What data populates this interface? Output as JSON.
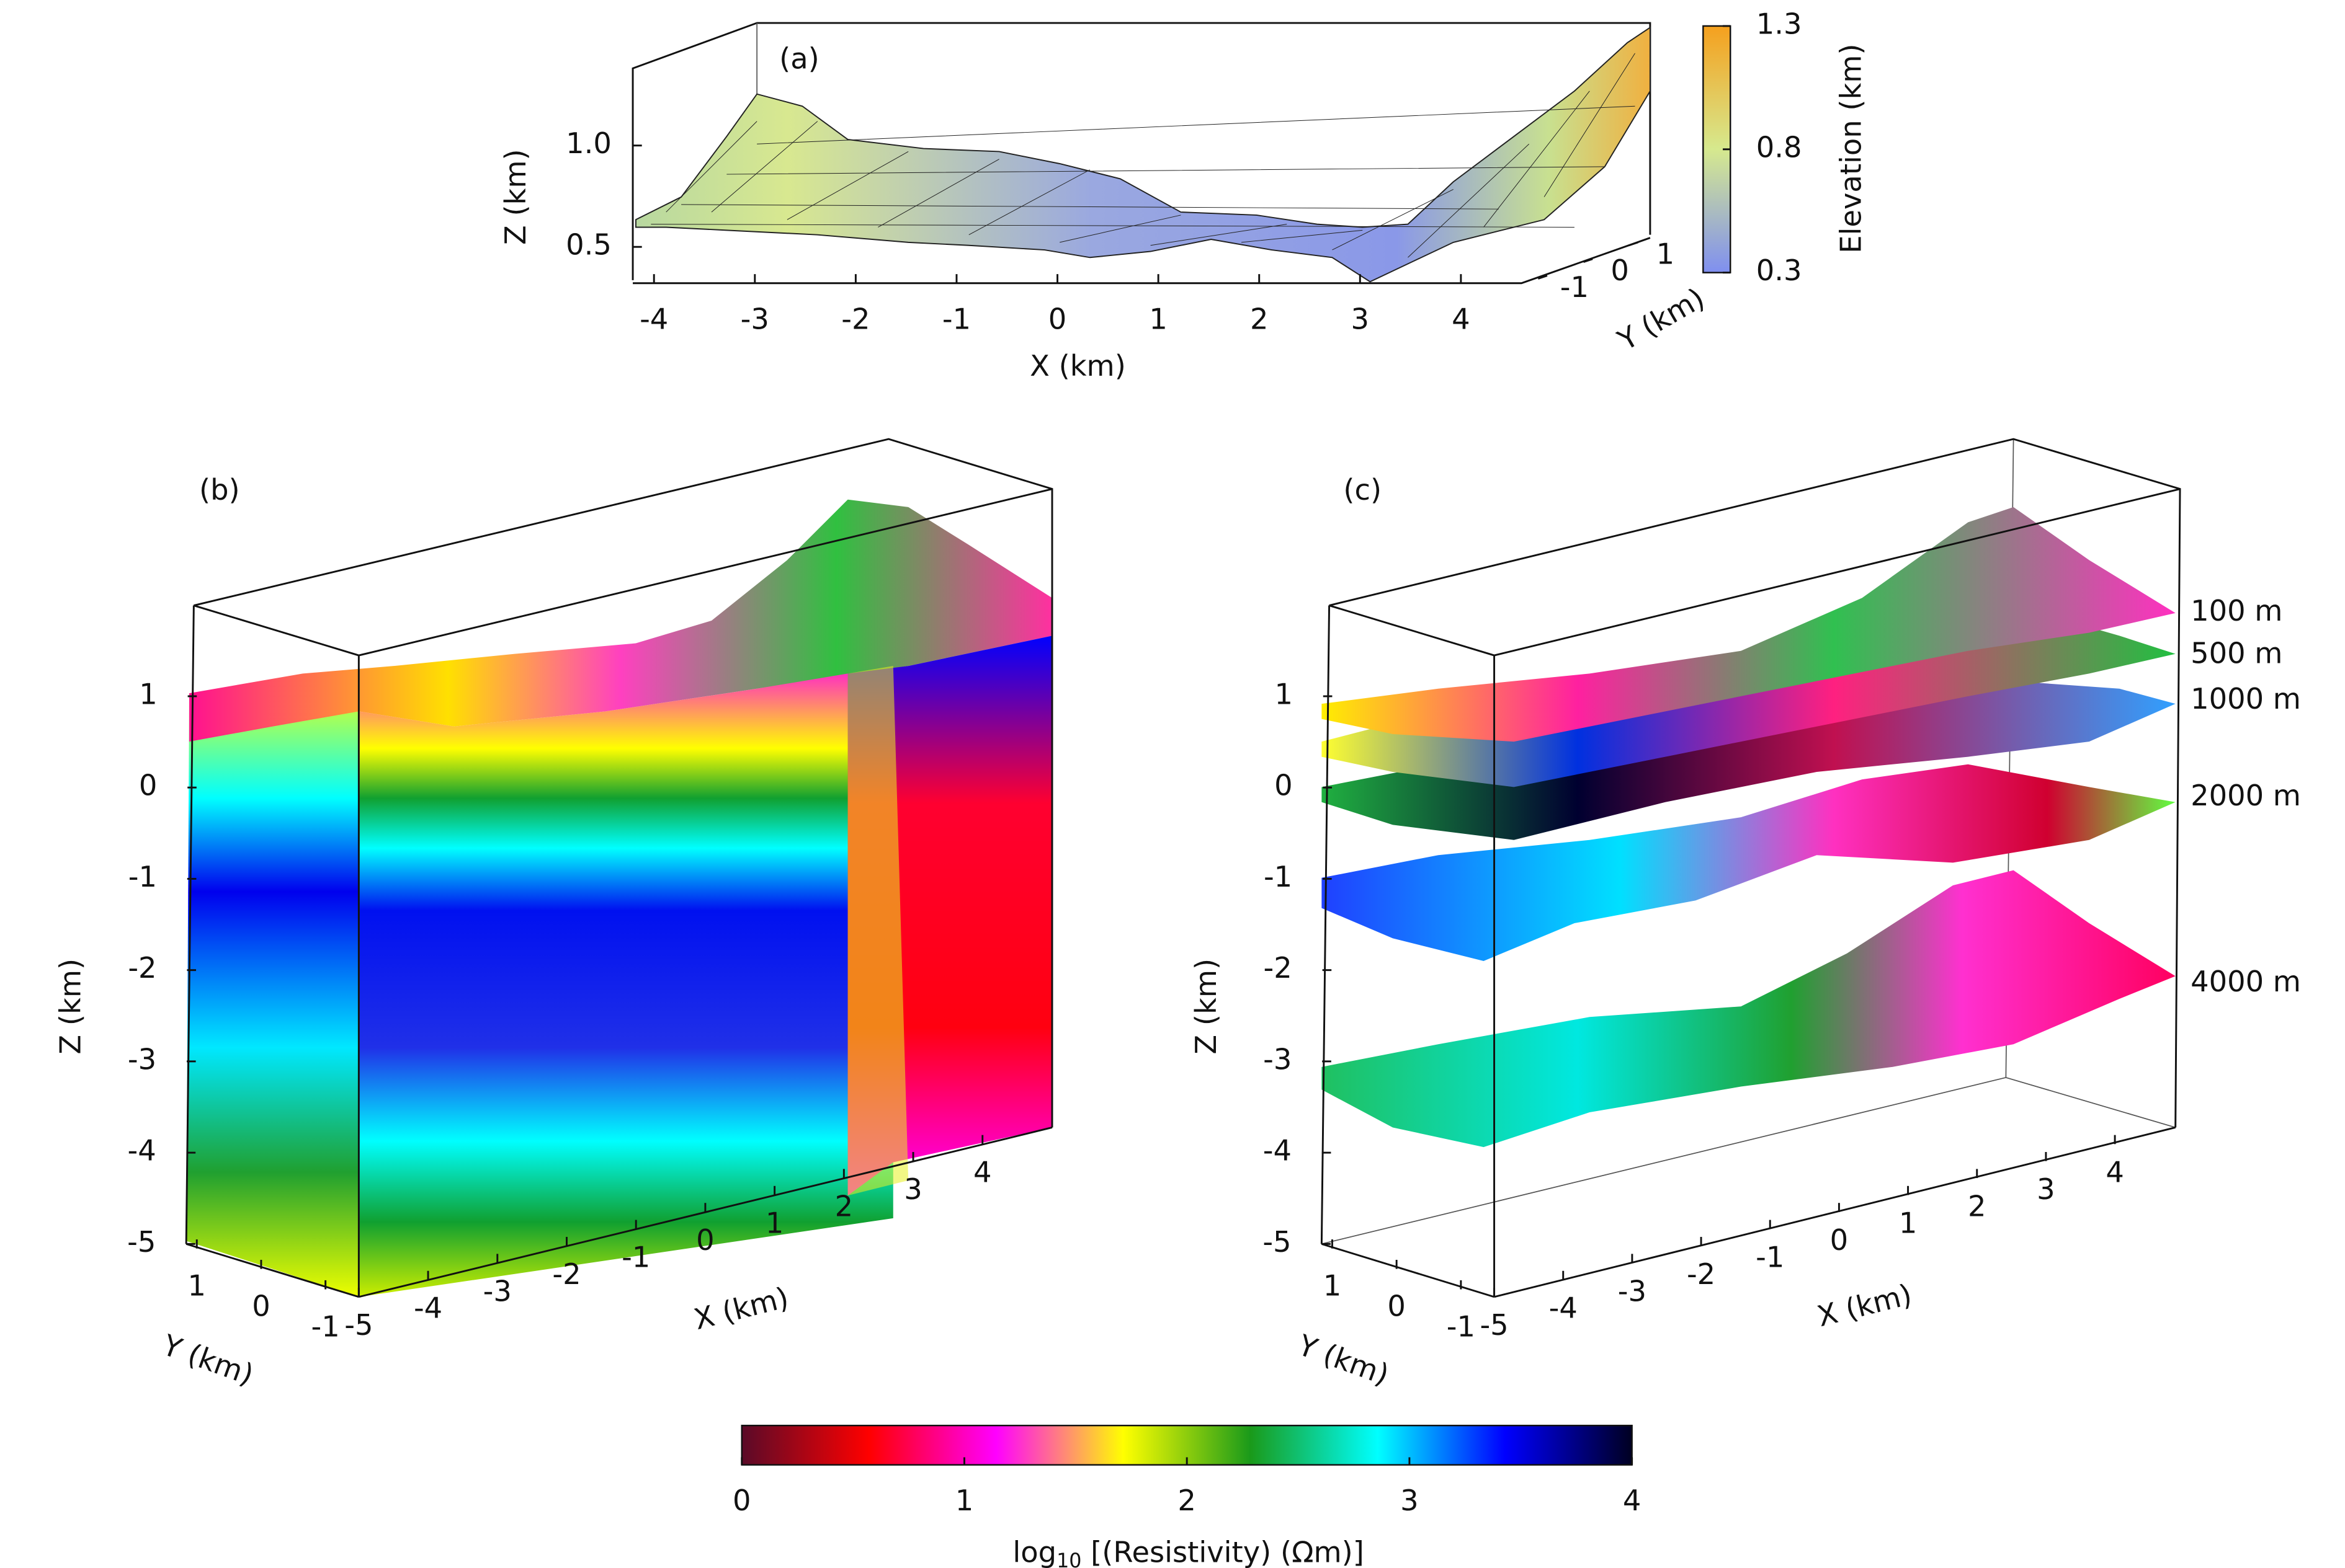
{
  "panel_a": {
    "label": "(a)",
    "x_axis_label": "X (km)",
    "y_axis_label": "Y (km)",
    "z_axis_label": "Z (km)",
    "x_ticks": [
      -4,
      -3,
      -2,
      -1,
      0,
      1,
      2,
      3,
      4
    ],
    "y_ticks": [
      -1,
      0,
      1
    ],
    "z_ticks": [
      0.5,
      {
        "value": 1,
        "label": "1.0"
      }
    ],
    "colorbar": {
      "label": "Elevation (km)",
      "ticks": [
        0.3,
        0.8,
        1.3
      ],
      "colors": [
        "#7f8ff0",
        "#d6e98e",
        "#f5a01e"
      ]
    }
  },
  "panel_b": {
    "label": "(b)",
    "x_axis_label": "X (km)",
    "y_axis_label": "Y (km)",
    "z_axis_label": "Z (km)",
    "x_ticks": [
      -5,
      -4,
      -3,
      -2,
      -1,
      0,
      1,
      2,
      3,
      4
    ],
    "y_ticks": [
      -1,
      0,
      1
    ],
    "z_ticks": [
      -5,
      -4,
      -3,
      -2,
      -1,
      0,
      1
    ]
  },
  "panel_c": {
    "label": "(c)",
    "x_axis_label": "X (km)",
    "y_axis_label": "Y (km)",
    "z_axis_label": "Z (km)",
    "x_ticks": [
      -5,
      -4,
      -3,
      -2,
      -1,
      0,
      1,
      2,
      3,
      4
    ],
    "y_ticks": [
      -1,
      0,
      1
    ],
    "z_ticks": [
      -5,
      -4,
      -3,
      -2,
      -1,
      0,
      1
    ],
    "depth_slices": [
      "100 m",
      "500 m",
      "1000 m",
      "2000 m",
      "4000 m"
    ]
  },
  "colorbar": {
    "label_base": "log",
    "label_subscript": "10",
    "label_rest": " [(Resistivity) (Ωm)]",
    "ticks": [
      0,
      1,
      2,
      3,
      4
    ],
    "colors": [
      "#5a0a28",
      "#ff0000",
      "#ff00ff",
      "#ffff00",
      "#1a9a1a",
      "#00ffff",
      "#0000ff",
      "#000022"
    ]
  }
}
